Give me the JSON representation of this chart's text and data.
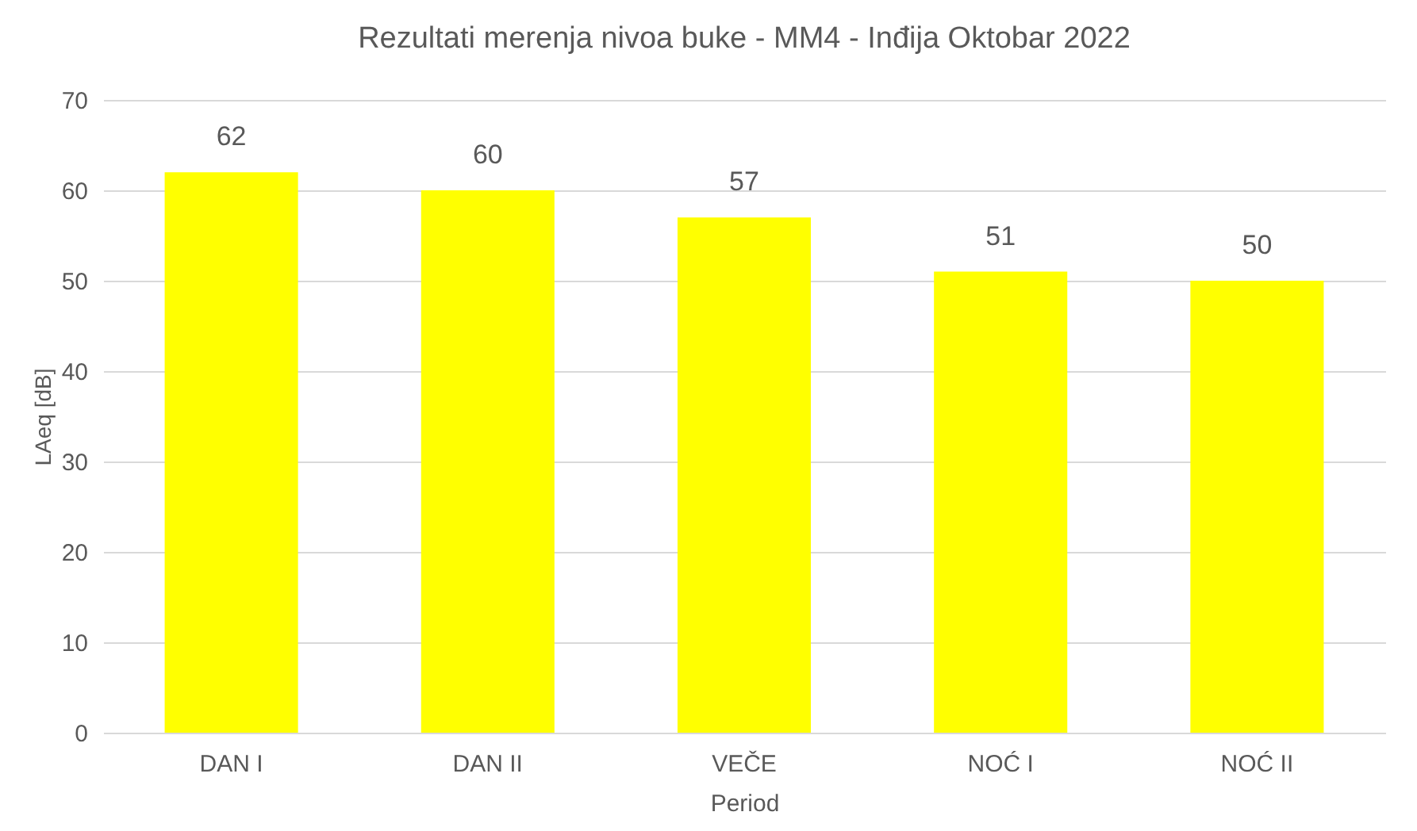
{
  "chart_data": {
    "type": "bar",
    "title": "Rezultati merenja nivoa buke - MM4 - Inđija Oktobar 2022",
    "xlabel": "Period",
    "ylabel": "LAeq [dB]",
    "categories": [
      "DAN I",
      "DAN II",
      "VEČE",
      "NOĆ I",
      "NOĆ II"
    ],
    "values": [
      62,
      60,
      57,
      51,
      50
    ],
    "color": "#ffff00",
    "ylim": [
      0,
      70
    ],
    "yticks": [
      0,
      10,
      20,
      30,
      40,
      50,
      60,
      70
    ],
    "grid": "y",
    "data_labels": true
  }
}
